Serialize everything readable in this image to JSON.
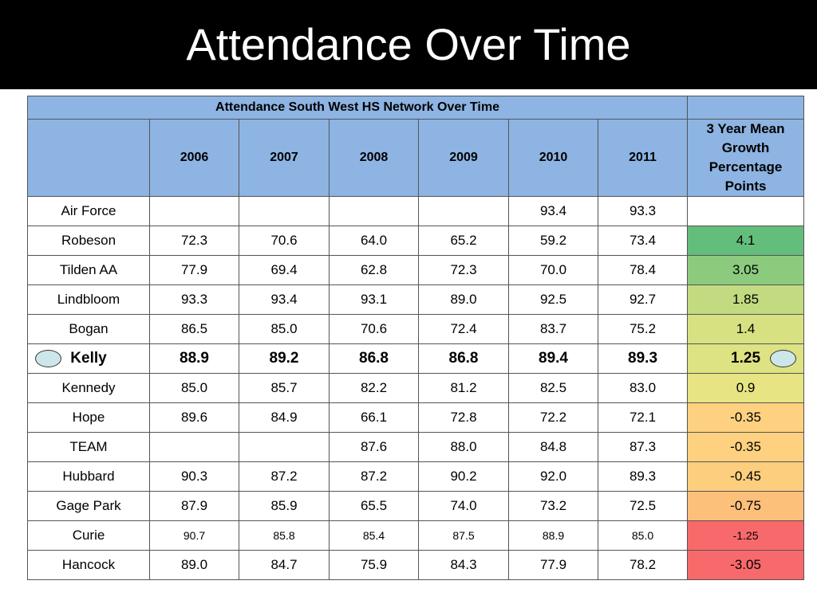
{
  "title": "Attendance Over Time",
  "table": {
    "caption": "Attendance South West HS Network Over Time",
    "columns": [
      "",
      "2006",
      "2007",
      "2008",
      "2009",
      "2010",
      "2011",
      "3 Year Mean Growth Percentage Points"
    ],
    "rows": [
      {
        "school": "Air Force",
        "values": [
          "",
          "",
          "",
          "",
          "93.4",
          "93.3"
        ],
        "growth": "",
        "growth_color": "#ffffff"
      },
      {
        "school": "Robeson",
        "values": [
          "72.3",
          "70.6",
          "64.0",
          "65.2",
          "59.2",
          "73.4"
        ],
        "growth": "4.1",
        "growth_color": "#63be7b"
      },
      {
        "school": "Tilden AA",
        "values": [
          "77.9",
          "69.4",
          "62.8",
          "72.3",
          "70.0",
          "78.4"
        ],
        "growth": "3.05",
        "growth_color": "#8ccb7e"
      },
      {
        "school": "Lindbloom",
        "values": [
          "93.3",
          "93.4",
          "93.1",
          "89.0",
          "92.5",
          "92.7"
        ],
        "growth": "1.85",
        "growth_color": "#c2da80"
      },
      {
        "school": "Bogan",
        "values": [
          "86.5",
          "85.0",
          "70.6",
          "72.4",
          "83.7",
          "75.2"
        ],
        "growth": "1.4",
        "growth_color": "#d7e182"
      },
      {
        "school": "Kelly",
        "values": [
          "88.9",
          "89.2",
          "86.8",
          "86.8",
          "89.4",
          "89.3"
        ],
        "growth": "1.25",
        "growth_color": "#dde283",
        "highlight": true
      },
      {
        "school": "Kennedy",
        "values": [
          "85.0",
          "85.7",
          "82.2",
          "81.2",
          "82.5",
          "83.0"
        ],
        "growth": "0.9",
        "growth_color": "#e6e483"
      },
      {
        "school": "Hope",
        "values": [
          "89.6",
          "84.9",
          "66.1",
          "72.8",
          "72.2",
          "72.1"
        ],
        "growth": "-0.35",
        "growth_color": "#fdd17f"
      },
      {
        "school": "TEAM",
        "values": [
          "",
          "",
          "87.6",
          "88.0",
          "84.8",
          "87.3"
        ],
        "growth": "-0.35",
        "growth_color": "#fdd17f"
      },
      {
        "school": "Hubbard",
        "values": [
          "90.3",
          "87.2",
          "87.2",
          "90.2",
          "92.0",
          "89.3"
        ],
        "growth": "-0.45",
        "growth_color": "#fdce7e"
      },
      {
        "school": "Gage Park",
        "values": [
          "87.9",
          "85.9",
          "65.5",
          "74.0",
          "73.2",
          "72.5"
        ],
        "growth": "-0.75",
        "growth_color": "#fcc07b"
      },
      {
        "school": "Curie",
        "values": [
          "90.7",
          "85.8",
          "85.4",
          "87.5",
          "88.9",
          "85.0"
        ],
        "growth": "-1.25",
        "growth_color": "#f8696b",
        "small": true
      },
      {
        "school": "Hancock",
        "values": [
          "89.0",
          "84.7",
          "75.9",
          "84.3",
          "77.9",
          "78.2"
        ],
        "growth": "-3.05",
        "growth_color": "#f8696b"
      }
    ]
  }
}
